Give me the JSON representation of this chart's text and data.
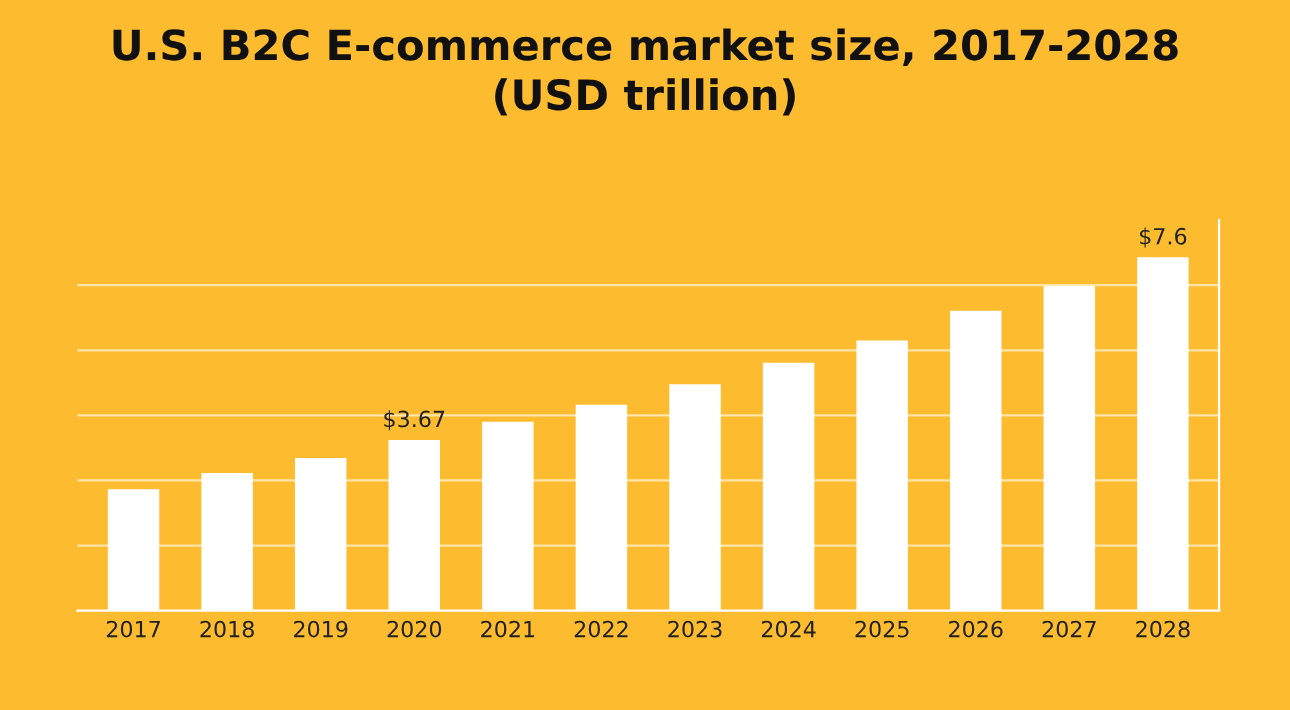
{
  "chart_data": {
    "type": "bar",
    "title": "U.S. B2C E-commerce market size, 2017-2028\n(USD trillion)",
    "categories": [
      "2017",
      "2018",
      "2019",
      "2020",
      "2021",
      "2022",
      "2023",
      "2024",
      "2025",
      "2026",
      "2027",
      "2028"
    ],
    "values": [
      2.61,
      2.96,
      3.28,
      3.67,
      4.06,
      4.43,
      4.87,
      5.33,
      5.81,
      6.45,
      6.98,
      7.6
    ],
    "value_labels": [
      null,
      null,
      null,
      "$3.67",
      null,
      null,
      null,
      null,
      null,
      null,
      null,
      "$7.6"
    ],
    "color": "#ffffff",
    "ylim": [
      0,
      8.4
    ],
    "yticks": [
      {
        "value": 1.4,
        "label": null
      },
      {
        "value": 2.8,
        "label": null
      },
      {
        "value": 4.2,
        "label": null
      },
      {
        "value": 5.6,
        "label": null
      },
      {
        "value": 7.0,
        "label": null
      }
    ],
    "tick_labels": "x",
    "grid": "y"
  }
}
